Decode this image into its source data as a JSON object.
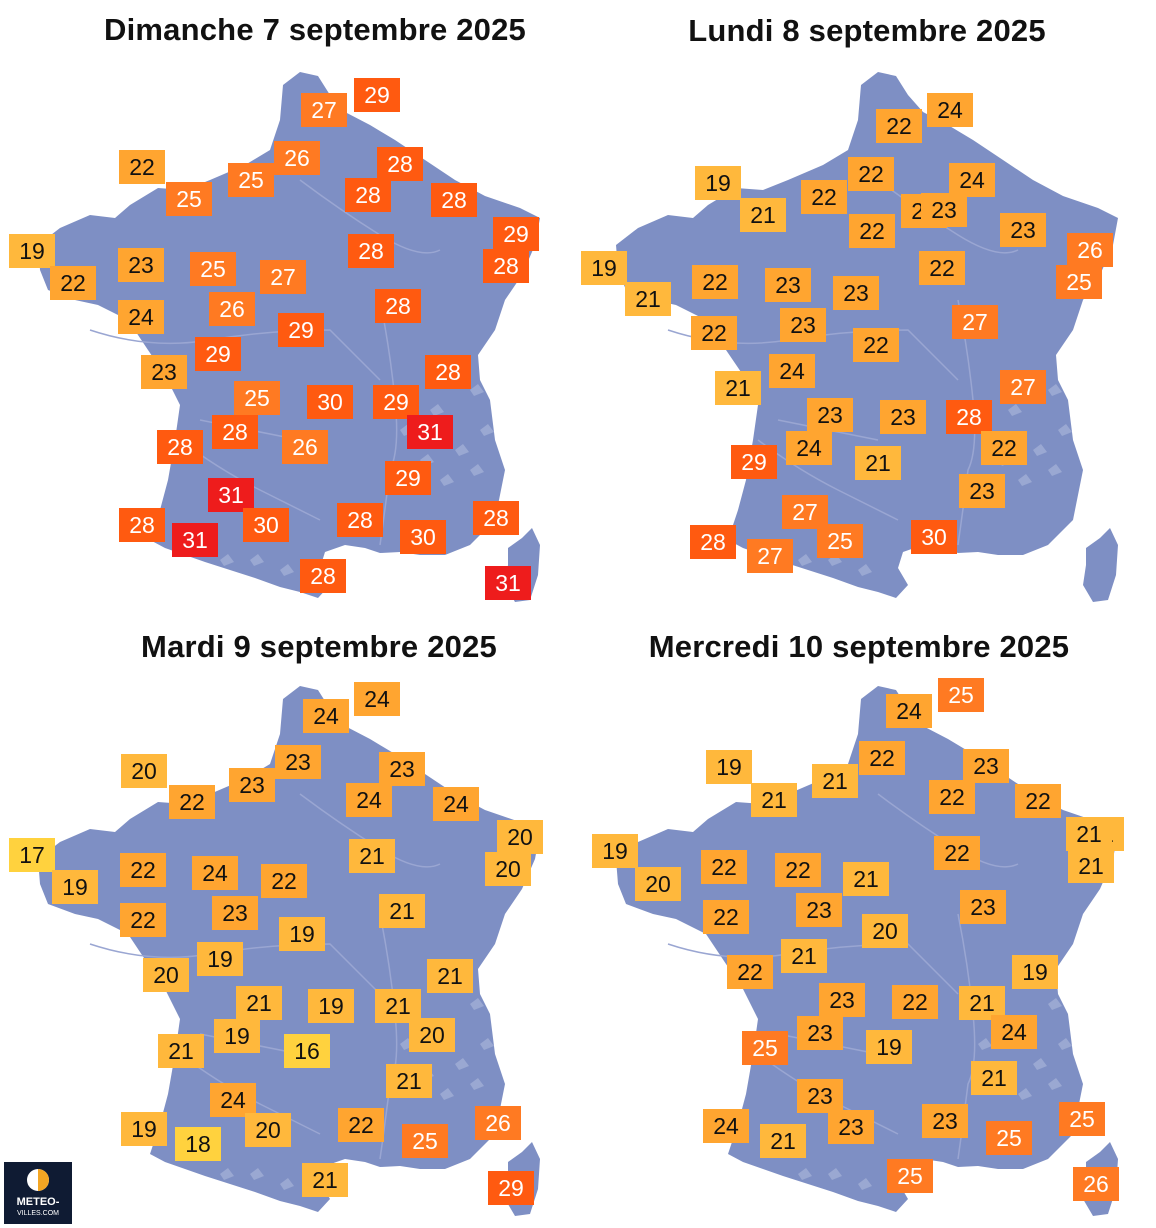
{
  "colors": {
    "land": "#7e8fc4",
    "river": "#9aa6d2",
    "relief": "#a6b2d9",
    "scale": {
      "16": "#ffd23e",
      "17": "#ffd23e",
      "18": "#ffd23e",
      "19": "#ffb83c",
      "20": "#ffb83c",
      "21": "#ffb83c",
      "22": "#ffa530",
      "23": "#ffa530",
      "24": "#ffa530",
      "25": "#ff7a22",
      "26": "#ff7a22",
      "27": "#ff7a22",
      "28": "#ff5a10",
      "29": "#ff5a10",
      "30": "#ff5a10",
      "31": "#ee1c1c"
    }
  },
  "logo": {
    "line1": "METEO-",
    "line2": "VILLES.COM"
  },
  "panels": [
    {
      "title": "Dimanche 7 septembre 2025",
      "temps": [
        "29",
        "27",
        "26",
        "22",
        "25",
        "25",
        "28",
        "28",
        "28",
        "29",
        "19",
        "22",
        "23",
        "25",
        "27",
        "28",
        "28",
        "29",
        "24",
        "26",
        "28",
        "29",
        "23",
        "25",
        "28",
        "28",
        "30",
        "29",
        "28",
        "31",
        "26",
        "29",
        "31",
        "28",
        "30",
        "28",
        "30",
        "28",
        "31",
        "28",
        "31"
      ]
    },
    {
      "title": "Lundi 8 septembre 2025",
      "temps": [
        "24",
        "22",
        "19",
        "21",
        "22",
        "22",
        "24",
        "23",
        "23",
        "19",
        "21",
        "22",
        "23",
        "22",
        "23",
        "26",
        "25",
        "23",
        "22",
        "22",
        "23",
        "27",
        "21",
        "22",
        "24",
        "27",
        "23",
        "23",
        "28",
        "29",
        "24",
        "21",
        "22",
        "23",
        "27",
        "28",
        "27",
        "25",
        "30"
      ]
    },
    {
      "title": "Mardi 9 septembre 2025",
      "temps": [
        "24",
        "24",
        "20",
        "22",
        "23",
        "23",
        "23",
        "24",
        "24",
        "20",
        "17",
        "19",
        "22",
        "24",
        "22",
        "21",
        "20",
        "19",
        "22",
        "23",
        "21",
        "19",
        "20",
        "21",
        "21",
        "19",
        "19",
        "21",
        "21",
        "20",
        "16",
        "21",
        "24",
        "19",
        "18",
        "20",
        "22",
        "25",
        "26",
        "21",
        "29"
      ]
    },
    {
      "title": "Mercredi 10 septembre 2025",
      "temps": [
        "25",
        "24",
        "19",
        "21",
        "21",
        "22",
        "23",
        "22",
        "22",
        "21",
        "19",
        "20",
        "22",
        "22",
        "21",
        "22",
        "21",
        "21",
        "20",
        "22",
        "23",
        "23",
        "21",
        "22",
        "23",
        "19",
        "23",
        "22",
        "21",
        "25",
        "24",
        "19",
        "21",
        "23",
        "24",
        "21",
        "23",
        "23",
        "25",
        "25",
        "25",
        "24",
        "26"
      ]
    }
  ]
}
